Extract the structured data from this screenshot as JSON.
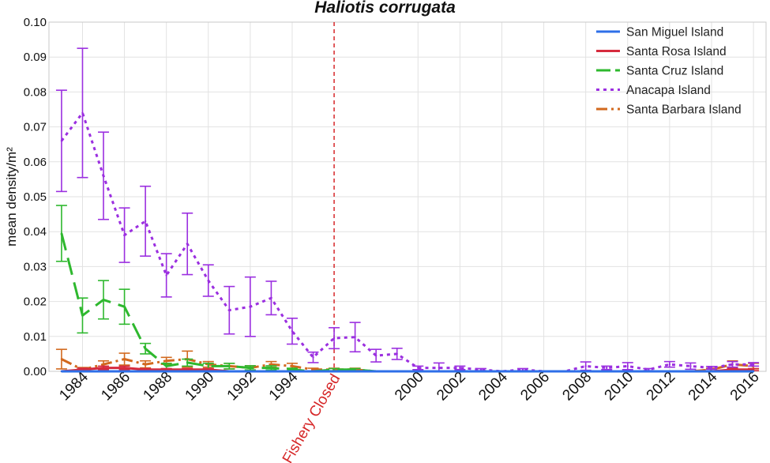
{
  "chart_data": {
    "type": "line",
    "title": "Haliotis corrugata",
    "ylabel": "mean density/m²",
    "xlabel": "",
    "ylim": [
      0,
      0.1
    ],
    "xlim": [
      1982.4,
      2016.6
    ],
    "yticks": [
      "0.00",
      "0.01",
      "0.02",
      "0.03",
      "0.04",
      "0.05",
      "0.06",
      "0.07",
      "0.08",
      "0.09",
      "0.10"
    ],
    "xticks": [
      "1984",
      "1986",
      "1988",
      "1990",
      "1992",
      "1994",
      "2000",
      "2002",
      "2004",
      "2006",
      "2008",
      "2010",
      "2012",
      "2014",
      "2016"
    ],
    "grid": true,
    "legend_position": "top-right",
    "annotation": {
      "x": 1996,
      "label": "Fishery Closed",
      "color": "#d62728"
    },
    "colors": {
      "San Miguel Island": "#2e6fe8",
      "Santa Rosa Island": "#d62b3e",
      "Santa Cruz Island": "#2eb82e",
      "Anacapa Island": "#9b2fe0",
      "Santa Barbara Island": "#d2691e"
    },
    "series": [
      {
        "name": "San Miguel Island",
        "style": "solid",
        "x": [
          1983,
          1984,
          1985,
          1986,
          1987,
          1988,
          1989,
          1990,
          1991,
          1992,
          1993,
          1994,
          1995,
          1996,
          1997,
          1998,
          1999,
          2000,
          2001,
          2002,
          2003,
          2004,
          2005,
          2006,
          2007,
          2008,
          2009,
          2010,
          2011,
          2012,
          2013,
          2014,
          2015,
          2016
        ],
        "y": [
          0,
          0,
          0,
          0,
          0,
          0,
          0,
          0,
          0,
          0,
          0,
          0,
          0,
          0,
          0,
          0,
          0,
          0,
          0,
          0,
          0,
          0,
          0,
          0,
          0,
          0,
          0,
          0,
          0,
          0,
          0,
          0,
          0,
          0
        ],
        "err": [
          0,
          0,
          0,
          0,
          0,
          0,
          0,
          0,
          0,
          0,
          0,
          0,
          0,
          0,
          0,
          0,
          0,
          0,
          0,
          0,
          0,
          0,
          0,
          0,
          0,
          0,
          0,
          0,
          0,
          0,
          0,
          0,
          0,
          0
        ]
      },
      {
        "name": "Santa Rosa Island",
        "style": "solid",
        "x": [
          1983,
          1984,
          1985,
          1986,
          1987,
          1988,
          1989,
          1990,
          1991,
          1992,
          1993,
          1994,
          1995,
          1996,
          1997,
          1998,
          1999,
          2000,
          2001,
          2002,
          2003,
          2004,
          2005,
          2006,
          2007,
          2008,
          2009,
          2010,
          2011,
          2012,
          2013,
          2014,
          2015,
          2016
        ],
        "y": [
          0,
          0.0005,
          0.001,
          0.001,
          0.0005,
          0.0005,
          0.0005,
          0.0005,
          0,
          0,
          0,
          0,
          0,
          0,
          0,
          0,
          0,
          0,
          0,
          0,
          0,
          0,
          0,
          0,
          0,
          0,
          0,
          0,
          0,
          0,
          0,
          0,
          0.0005,
          0.0005
        ],
        "err": [
          0,
          0.0004,
          0.0005,
          0.0005,
          0.0003,
          0.0003,
          0.0003,
          0.0003,
          0,
          0,
          0,
          0,
          0,
          0,
          0,
          0,
          0,
          0,
          0,
          0,
          0,
          0,
          0,
          0,
          0,
          0,
          0,
          0,
          0,
          0,
          0,
          0,
          0.0003,
          0.0003
        ]
      },
      {
        "name": "Santa Cruz Island",
        "style": "longdash",
        "x": [
          1983,
          1984,
          1985,
          1986,
          1987,
          1988,
          1989,
          1990,
          1991,
          1992,
          1993,
          1994,
          1995,
          1996,
          1997,
          1998,
          1999,
          2000,
          2001,
          2002,
          2003,
          2004,
          2005,
          2006,
          2007,
          2008,
          2009,
          2010,
          2011,
          2012,
          2013,
          2014,
          2015,
          2016
        ],
        "y": [
          0.0395,
          0.016,
          0.0205,
          0.0185,
          0.0065,
          0.0015,
          0.0025,
          0.0015,
          0.0015,
          0.001,
          0.001,
          0.0005,
          0,
          0.0005,
          0.0005,
          0,
          0,
          0,
          0,
          0,
          0,
          0,
          0,
          0,
          0,
          0,
          0,
          0,
          0,
          0,
          0,
          0,
          0,
          0
        ],
        "err": [
          0.008,
          0.005,
          0.0055,
          0.005,
          0.0015,
          0.0008,
          0.001,
          0.0008,
          0.0008,
          0.0006,
          0.0006,
          0.0004,
          0,
          0.0003,
          0.0003,
          0,
          0,
          0,
          0,
          0,
          0,
          0,
          0,
          0,
          0,
          0,
          0,
          0,
          0,
          0,
          0,
          0,
          0,
          0
        ]
      },
      {
        "name": "Anacapa Island",
        "style": "dotted",
        "x": [
          1983,
          1984,
          1985,
          1986,
          1987,
          1988,
          1989,
          1990,
          1991,
          1992,
          1993,
          1994,
          1995,
          1996,
          1997,
          1998,
          1999,
          2000,
          2001,
          2002,
          2003,
          2004,
          2005,
          2006,
          2007,
          2008,
          2009,
          2010,
          2011,
          2012,
          2013,
          2014,
          2015,
          2016
        ],
        "y": [
          0.066,
          0.074,
          0.056,
          0.039,
          0.043,
          0.0275,
          0.0365,
          0.026,
          0.0175,
          0.0185,
          0.021,
          0.0115,
          0.004,
          0.0095,
          0.0098,
          0.0045,
          0.005,
          0.001,
          0.001,
          0.001,
          0.0005,
          0,
          0.0005,
          0,
          0,
          0.0015,
          0.001,
          0.0015,
          0.0005,
          0.002,
          0.0015,
          0.001,
          0.002,
          0.002
        ],
        "err": [
          0.0145,
          0.0185,
          0.0125,
          0.0078,
          0.01,
          0.0062,
          0.0088,
          0.0045,
          0.0068,
          0.0085,
          0.0048,
          0.0037,
          0.0015,
          0.003,
          0.0042,
          0.0018,
          0.0016,
          0.0005,
          0.0014,
          0.0005,
          0.0003,
          0,
          0.0003,
          0,
          0,
          0.0012,
          0.0005,
          0.001,
          0.0003,
          0.0008,
          0.0009,
          0.0004,
          0.0008,
          0.0005
        ]
      },
      {
        "name": "Santa Barbara Island",
        "style": "dashdot",
        "x": [
          1983,
          1984,
          1985,
          1986,
          1987,
          1988,
          1989,
          1990,
          1991,
          1992,
          1993,
          1994,
          1995,
          1996,
          1997,
          1998,
          1999,
          2000,
          2001,
          2002,
          2003,
          2004,
          2005,
          2006,
          2007,
          2008,
          2009,
          2010,
          2011,
          2012,
          2013,
          2014,
          2015,
          2016
        ],
        "y": [
          0.0035,
          0.0005,
          0.002,
          0.0035,
          0.002,
          0.003,
          0.0035,
          0.002,
          0.0015,
          0.001,
          0.002,
          0.0015,
          0.0005,
          0.0005,
          0.0005,
          0,
          0,
          0,
          0,
          0,
          0,
          0,
          0,
          0,
          0,
          0,
          0,
          0,
          0,
          0,
          0,
          0.0005,
          0.002,
          0.0015
        ],
        "err": [
          0.0028,
          0.0006,
          0.001,
          0.0017,
          0.001,
          0.001,
          0.0023,
          0.0008,
          0.0008,
          0.0006,
          0.0008,
          0.0008,
          0.0004,
          0.0004,
          0.0004,
          0,
          0,
          0,
          0,
          0,
          0,
          0,
          0,
          0,
          0,
          0,
          0,
          0,
          0,
          0,
          0,
          0.0004,
          0.001,
          0.0008
        ]
      }
    ]
  }
}
